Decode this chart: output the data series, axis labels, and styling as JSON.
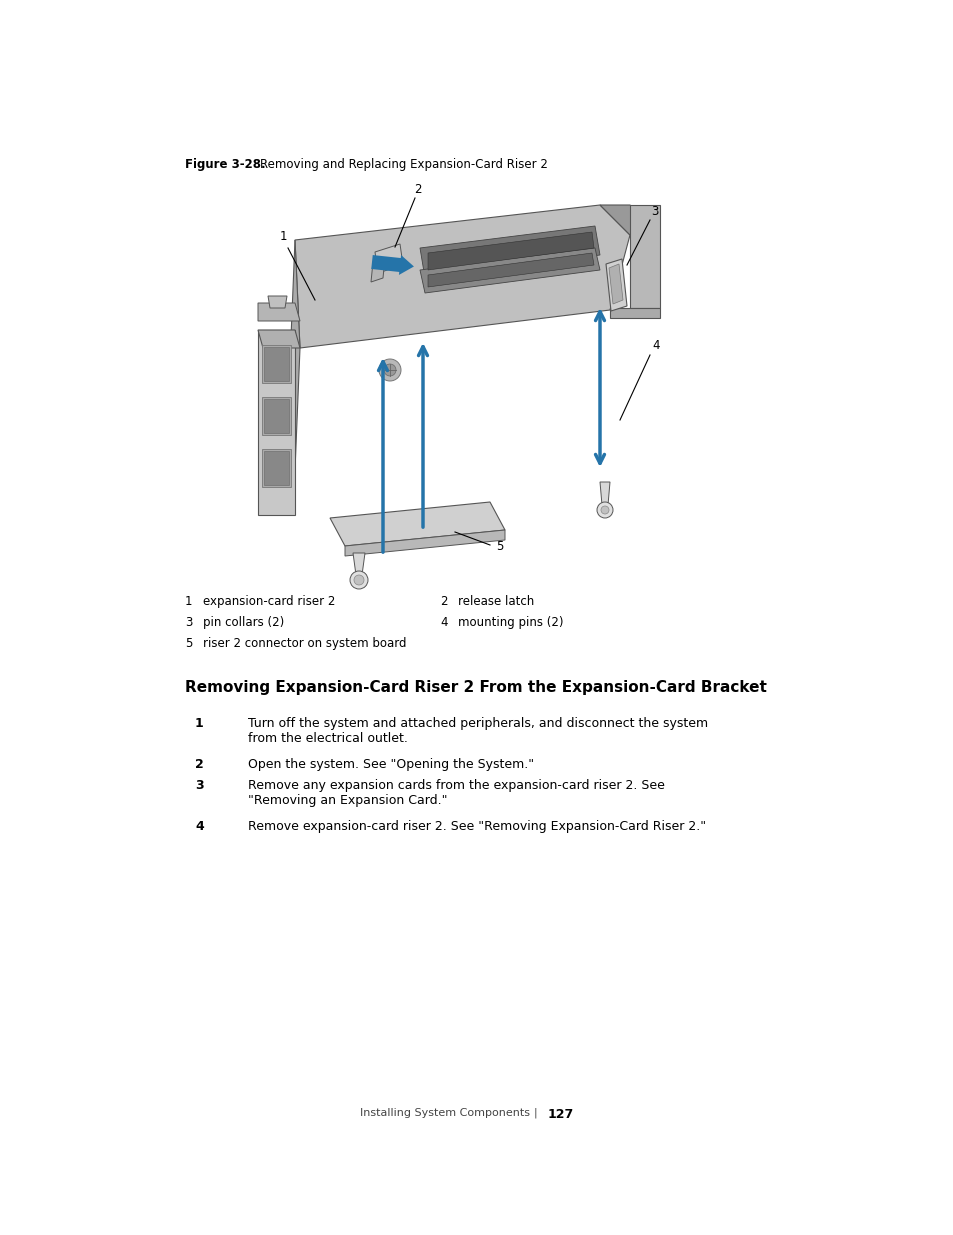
{
  "bg_color": "#ffffff",
  "figure_label": "Figure 3-28.",
  "figure_title": "Removing and Replacing Expansion-Card Riser 2",
  "legend_col1": [
    [
      "1",
      "expansion-card riser 2"
    ],
    [
      "3",
      "pin collars (2)"
    ],
    [
      "5",
      "riser 2 connector on system board"
    ]
  ],
  "legend_col2": [
    [
      "2",
      "release latch"
    ],
    [
      "4",
      "mounting pins (2)"
    ],
    [
      "",
      ""
    ]
  ],
  "section_title": "Removing Expansion-Card Riser 2 From the Expansion-Card Bracket",
  "step1": "Turn off the system and attached peripherals, and disconnect the system\nfrom the electrical outlet.",
  "step2": "Open the system. See \"Opening the System.\"",
  "step3": "Remove any expansion cards from the expansion-card riser 2. See\n\"Removing an Expansion Card.\"",
  "step4": "Remove expansion-card riser 2. See \"Removing Expansion-Card Riser 2.\"",
  "footer_left": "Installing System Components",
  "footer_page": "127",
  "arrow_color": "#2574a9",
  "gray_dark": "#888888",
  "gray_med": "#aaaaaa",
  "gray_light": "#cccccc",
  "gray_very_light": "#e0e0e0",
  "outline": "#555555",
  "text_color": "#000000"
}
